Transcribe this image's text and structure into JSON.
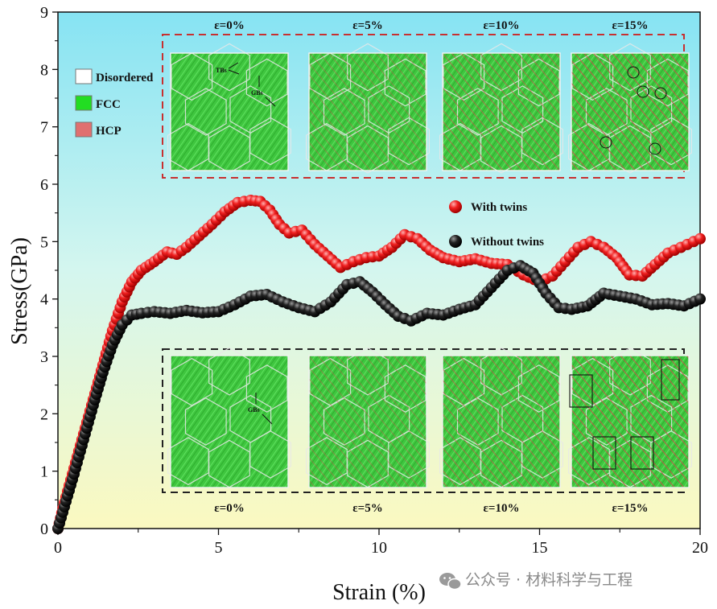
{
  "chart_data": {
    "type": "scatter",
    "xlabel": "Strain (%)",
    "ylabel": "Stress(GPa)",
    "xlim": [
      0,
      20
    ],
    "ylim": [
      0,
      9
    ],
    "xticks": [
      0,
      5,
      10,
      15,
      20
    ],
    "yticks": [
      0,
      1,
      2,
      3,
      4,
      5,
      6,
      7,
      8,
      9
    ],
    "grid": false,
    "series": [
      {
        "name": "With twins",
        "color": "#e8141b",
        "points": [
          [
            0,
            0
          ],
          [
            0.2,
            0.45
          ],
          [
            0.5,
            1.05
          ],
          [
            0.8,
            1.65
          ],
          [
            1.1,
            2.25
          ],
          [
            1.4,
            2.85
          ],
          [
            1.7,
            3.45
          ],
          [
            2.0,
            3.95
          ],
          [
            2.3,
            4.3
          ],
          [
            2.6,
            4.5
          ],
          [
            3.0,
            4.65
          ],
          [
            3.4,
            4.82
          ],
          [
            3.7,
            4.78
          ],
          [
            4.0,
            4.9
          ],
          [
            4.4,
            5.1
          ],
          [
            4.8,
            5.3
          ],
          [
            5.2,
            5.52
          ],
          [
            5.6,
            5.68
          ],
          [
            6.0,
            5.72
          ],
          [
            6.3,
            5.7
          ],
          [
            6.6,
            5.55
          ],
          [
            6.9,
            5.3
          ],
          [
            7.2,
            5.15
          ],
          [
            7.6,
            5.2
          ],
          [
            8.0,
            4.95
          ],
          [
            8.4,
            4.75
          ],
          [
            8.8,
            4.55
          ],
          [
            9.2,
            4.65
          ],
          [
            9.6,
            4.72
          ],
          [
            10.0,
            4.75
          ],
          [
            10.4,
            4.9
          ],
          [
            10.8,
            5.12
          ],
          [
            11.2,
            5.05
          ],
          [
            11.6,
            4.85
          ],
          [
            12.0,
            4.72
          ],
          [
            12.5,
            4.65
          ],
          [
            13.0,
            4.7
          ],
          [
            13.5,
            4.62
          ],
          [
            14.0,
            4.6
          ],
          [
            14.5,
            4.42
          ],
          [
            15.0,
            4.3
          ],
          [
            15.4,
            4.4
          ],
          [
            15.8,
            4.65
          ],
          [
            16.2,
            4.9
          ],
          [
            16.6,
            5.0
          ],
          [
            17.0,
            4.9
          ],
          [
            17.4,
            4.72
          ],
          [
            17.8,
            4.42
          ],
          [
            18.2,
            4.4
          ],
          [
            18.6,
            4.6
          ],
          [
            19.0,
            4.8
          ],
          [
            19.4,
            4.9
          ],
          [
            19.8,
            5.0
          ],
          [
            20.0,
            5.05
          ]
        ]
      },
      {
        "name": "Without twins",
        "color": "#111111",
        "points": [
          [
            0,
            0
          ],
          [
            0.2,
            0.38
          ],
          [
            0.5,
            0.95
          ],
          [
            0.8,
            1.55
          ],
          [
            1.1,
            2.15
          ],
          [
            1.4,
            2.72
          ],
          [
            1.7,
            3.2
          ],
          [
            2.0,
            3.55
          ],
          [
            2.3,
            3.72
          ],
          [
            2.6,
            3.75
          ],
          [
            3.0,
            3.78
          ],
          [
            3.5,
            3.75
          ],
          [
            4.0,
            3.8
          ],
          [
            4.5,
            3.76
          ],
          [
            5.0,
            3.78
          ],
          [
            5.5,
            3.9
          ],
          [
            6.0,
            4.05
          ],
          [
            6.5,
            4.08
          ],
          [
            7.0,
            3.95
          ],
          [
            7.5,
            3.85
          ],
          [
            8.0,
            3.78
          ],
          [
            8.5,
            3.95
          ],
          [
            9.0,
            4.25
          ],
          [
            9.4,
            4.3
          ],
          [
            9.8,
            4.12
          ],
          [
            10.2,
            3.9
          ],
          [
            10.6,
            3.7
          ],
          [
            11.0,
            3.62
          ],
          [
            11.5,
            3.75
          ],
          [
            12.0,
            3.72
          ],
          [
            12.5,
            3.82
          ],
          [
            13.0,
            3.9
          ],
          [
            13.5,
            4.2
          ],
          [
            14.0,
            4.5
          ],
          [
            14.4,
            4.58
          ],
          [
            14.8,
            4.45
          ],
          [
            15.2,
            4.1
          ],
          [
            15.6,
            3.85
          ],
          [
            16.0,
            3.82
          ],
          [
            16.5,
            3.88
          ],
          [
            17.0,
            4.1
          ],
          [
            17.5,
            4.05
          ],
          [
            18.0,
            4.0
          ],
          [
            18.5,
            3.9
          ],
          [
            19.0,
            3.92
          ],
          [
            19.5,
            3.88
          ],
          [
            20.0,
            4.0
          ]
        ]
      }
    ],
    "legend": [
      {
        "label": "With twins",
        "color": "#e8141b"
      },
      {
        "label": "Without twins",
        "color": "#111111"
      }
    ]
  },
  "phase_legend": [
    {
      "label": "Disordered",
      "color": "#ffffff"
    },
    {
      "label": "FCC",
      "color": "#22dd22"
    },
    {
      "label": "HCP",
      "color": "#e07070"
    }
  ],
  "top_panel": {
    "labels": [
      "ε=0%",
      "ε=5%",
      "ε=10%",
      "ε=15%"
    ],
    "annotations": {
      "tbs": "TBs",
      "gbs": "GBs"
    },
    "box_color": "#c83030"
  },
  "bottom_panel": {
    "labels": [
      "ε=0%",
      "ε=5%",
      "ε=10%",
      "ε=15%"
    ],
    "annotations": {
      "gbs": "GBs"
    },
    "box_color": "#222222"
  },
  "watermark": {
    "text": "公众号 · 材料科学与工程"
  }
}
